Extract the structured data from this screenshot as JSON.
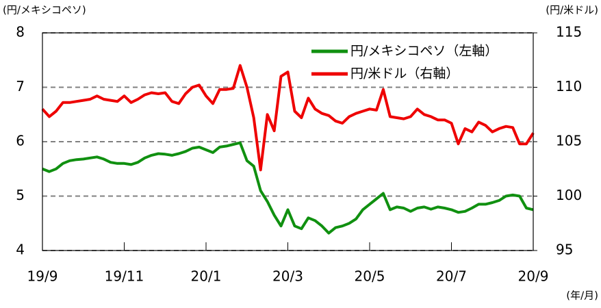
{
  "chart_data": {
    "type": "line",
    "y_label": "(円/メキシコペソ)",
    "y2_label": "(円/米ドル)",
    "x_label": "(年/月)",
    "categories": [
      "19/9",
      null,
      null,
      null,
      null,
      null,
      null,
      null,
      null,
      null,
      null,
      null,
      "19/11",
      null,
      null,
      null,
      null,
      null,
      null,
      null,
      null,
      null,
      null,
      null,
      "20/1",
      null,
      null,
      null,
      null,
      null,
      null,
      null,
      null,
      null,
      null,
      null,
      "20/3",
      null,
      null,
      null,
      null,
      null,
      null,
      null,
      null,
      null,
      null,
      null,
      "20/5",
      null,
      null,
      null,
      null,
      null,
      null,
      null,
      null,
      null,
      null,
      null,
      "20/7",
      null,
      null,
      null,
      null,
      null,
      null,
      null,
      null,
      null,
      null,
      null,
      "20/9"
    ],
    "series": [
      {
        "name": "円/メキシコペソ（左軸）",
        "color": "#109010",
        "axis": "y",
        "values": [
          5.5,
          5.45,
          5.5,
          5.6,
          5.65,
          5.67,
          5.68,
          5.7,
          5.72,
          5.68,
          5.62,
          5.6,
          5.6,
          5.58,
          5.62,
          5.7,
          5.75,
          5.78,
          5.77,
          5.75,
          5.78,
          5.82,
          5.88,
          5.9,
          5.85,
          5.8,
          5.9,
          5.92,
          5.95,
          5.98,
          5.65,
          5.55,
          5.1,
          4.9,
          4.65,
          4.45,
          4.75,
          4.45,
          4.4,
          4.6,
          4.55,
          4.45,
          4.32,
          4.42,
          4.45,
          4.5,
          4.58,
          4.75,
          4.85,
          4.95,
          5.05,
          4.75,
          4.8,
          4.78,
          4.72,
          4.78,
          4.8,
          4.76,
          4.8,
          4.78,
          4.75,
          4.7,
          4.72,
          4.78,
          4.85,
          4.85,
          4.88,
          4.92,
          5.0,
          5.02,
          5.0,
          4.78,
          4.75
        ]
      },
      {
        "name": "円/米ドル（右軸）",
        "color": "#ee0000",
        "axis": "y2",
        "values": [
          108.0,
          107.3,
          107.8,
          108.6,
          108.6,
          108.7,
          108.8,
          108.9,
          109.2,
          108.9,
          108.8,
          108.7,
          109.2,
          108.6,
          108.9,
          109.3,
          109.5,
          109.4,
          109.5,
          108.7,
          108.5,
          109.4,
          110.0,
          110.2,
          109.2,
          108.5,
          109.8,
          109.8,
          109.9,
          112.0,
          110.0,
          107.2,
          102.4,
          107.5,
          106.0,
          111.0,
          111.4,
          107.8,
          107.2,
          109.0,
          108.0,
          107.6,
          107.4,
          106.9,
          106.7,
          107.3,
          107.6,
          107.8,
          108.0,
          107.9,
          109.8,
          107.3,
          107.2,
          107.1,
          107.3,
          108.0,
          107.5,
          107.3,
          107.0,
          107.0,
          106.7,
          104.8,
          106.2,
          105.9,
          106.8,
          106.5,
          105.9,
          106.2,
          106.4,
          106.3,
          104.8,
          104.8,
          105.8
        ]
      }
    ],
    "ylim": [
      4,
      8
    ],
    "yticks": [
      4,
      5,
      6,
      7,
      8
    ],
    "y2lim": [
      95,
      115
    ],
    "y2ticks": [
      95,
      100,
      105,
      110,
      115
    ],
    "grid": true
  }
}
